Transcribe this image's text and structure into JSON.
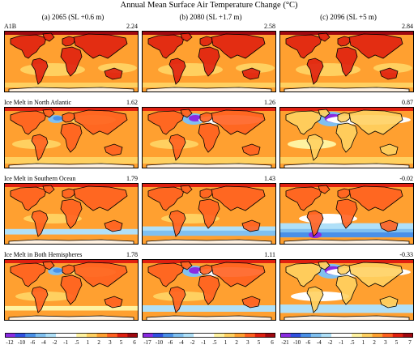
{
  "title": "Annual Mean Surface Air Temperature Change (°C)",
  "columns": [
    "(a) 2065 (SL +0.6 m)",
    "(b) 2080 (SL +1.7 m)",
    "(c) 2096 (SL +5 m)"
  ],
  "rows": [
    {
      "name": "A1B",
      "values": [
        "2.24",
        "2.58",
        "2.84"
      ]
    },
    {
      "name": "Ice Melt in North Atlantic",
      "values": [
        "1.62",
        "1.26",
        "0.87"
      ]
    },
    {
      "name": "Ice Melt in Southern Ocean",
      "values": [
        "1.79",
        "1.43",
        "-0.02"
      ]
    },
    {
      "name": "Ice Melt in Both Hemispheres",
      "values": [
        "1.78",
        "1.11",
        "-0.33"
      ]
    }
  ],
  "colorbars": [
    {
      "ticks": [
        "-12",
        "-10",
        "-6",
        "-4",
        "-2",
        "-1",
        ".5",
        "1",
        "2",
        "3",
        "5",
        "6"
      ],
      "colors": [
        "#8a2be2",
        "#3050e0",
        "#4a90e8",
        "#80c0f0",
        "#b0e0f8",
        "#ffffff",
        "#ffffff",
        "#fff2a0",
        "#ffd060",
        "#ffa030",
        "#ff6020",
        "#e02010",
        "#a00810"
      ]
    },
    {
      "ticks": [
        "-17",
        "-10",
        "-6",
        "-4",
        "-2",
        "-1",
        ".5",
        "1",
        "2",
        "3",
        "5",
        "6"
      ],
      "colors": [
        "#8a2be2",
        "#3050e0",
        "#4a90e8",
        "#80c0f0",
        "#b0e0f8",
        "#ffffff",
        "#ffffff",
        "#fff2a0",
        "#ffd060",
        "#ffa030",
        "#ff6020",
        "#e02010",
        "#a00810"
      ]
    },
    {
      "ticks": [
        "-21",
        "-10",
        "-6",
        "-4",
        "-2",
        "-1",
        ".5",
        "1",
        "2",
        "3",
        "5",
        "7"
      ],
      "colors": [
        "#8a2be2",
        "#3050e0",
        "#4a90e8",
        "#80c0f0",
        "#b0e0f8",
        "#ffffff",
        "#ffffff",
        "#fff2a0",
        "#ffd060",
        "#ffa030",
        "#ff6020",
        "#e02010",
        "#a00810"
      ]
    }
  ]
}
